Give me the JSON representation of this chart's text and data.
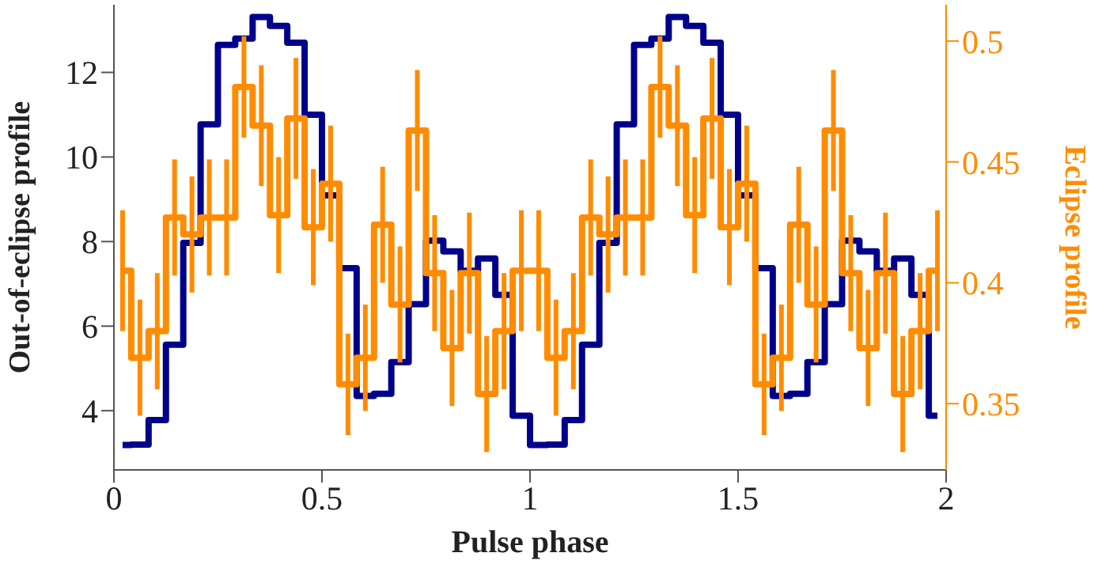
{
  "chart_data": {
    "type": "step",
    "xlabel": "Pulse phase",
    "ylabel": "Out-of-eclipse profile",
    "y2label": "Eclipse profile",
    "x": [
      0.0208,
      0.0625,
      0.1042,
      0.1458,
      0.1875,
      0.2292,
      0.2708,
      0.3125,
      0.3542,
      0.3958,
      0.4375,
      0.4792,
      0.5208,
      0.5625,
      0.6042,
      0.6458,
      0.6875,
      0.7292,
      0.7708,
      0.8125,
      0.8542,
      0.8958,
      0.9375,
      0.9792,
      1.0208,
      1.0625,
      1.1042,
      1.1458,
      1.1875,
      1.2292,
      1.2708,
      1.3125,
      1.3542,
      1.3958,
      1.4375,
      1.4792,
      1.5208,
      1.5625,
      1.6042,
      1.6458,
      1.6875,
      1.7292,
      1.7708,
      1.8125,
      1.8542,
      1.8958,
      1.9375,
      1.9792
    ],
    "series": [
      {
        "color": "#00008b",
        "values": [
          3.19,
          3.2,
          3.78,
          5.56,
          7.97,
          10.77,
          12.65,
          12.8,
          13.31,
          13.1,
          12.7,
          11.0,
          9.09,
          7.37,
          4.35,
          4.4,
          5.15,
          6.52,
          8.02,
          7.77,
          7.31,
          7.6,
          6.74,
          3.88,
          3.19,
          3.2,
          3.78,
          5.56,
          7.97,
          10.77,
          12.65,
          12.8,
          13.31,
          13.1,
          12.7,
          11.0,
          9.09,
          7.37,
          4.35,
          4.4,
          5.15,
          6.52,
          8.02,
          7.77,
          7.31,
          7.6,
          6.74,
          3.88
        ]
      },
      {
        "color": "#ff8c00",
        "axis": "y2",
        "values": [
          0.405,
          0.369,
          0.38,
          0.427,
          0.42,
          0.427,
          0.427,
          0.481,
          0.465,
          0.428,
          0.468,
          0.423,
          0.441,
          0.358,
          0.369,
          0.424,
          0.391,
          0.463,
          0.404,
          0.373,
          0.404,
          0.354,
          0.38,
          0.405,
          0.405,
          0.369,
          0.38,
          0.427,
          0.42,
          0.427,
          0.427,
          0.481,
          0.465,
          0.428,
          0.468,
          0.423,
          0.441,
          0.358,
          0.369,
          0.424,
          0.391,
          0.463,
          0.404,
          0.373,
          0.404,
          0.354,
          0.38,
          0.405
        ],
        "errors": [
          0.025,
          0.024,
          0.024,
          0.024,
          0.024,
          0.024,
          0.024,
          0.021,
          0.025,
          0.024,
          0.025,
          0.024,
          0.024,
          0.021,
          0.022,
          0.024,
          0.024,
          0.025,
          0.024,
          0.024,
          0.025,
          0.024,
          0.024,
          0.025,
          0.025,
          0.024,
          0.024,
          0.024,
          0.024,
          0.024,
          0.024,
          0.021,
          0.025,
          0.024,
          0.025,
          0.024,
          0.024,
          0.021,
          0.022,
          0.024,
          0.024,
          0.025,
          0.024,
          0.024,
          0.025,
          0.024,
          0.024,
          0.025
        ]
      }
    ],
    "xlim": [
      0,
      2
    ],
    "xticks": [
      0,
      0.5,
      1,
      1.5,
      2
    ],
    "ylim": [
      2.6,
      13.6
    ],
    "yticks": [
      4,
      6,
      8,
      10,
      12
    ],
    "y2lim": [
      0.3226,
      0.515
    ],
    "y2ticks": [
      0.35,
      0.4,
      0.45,
      0.5
    ],
    "grid": false,
    "legend": false,
    "marker": "none",
    "line_style": "solid"
  }
}
